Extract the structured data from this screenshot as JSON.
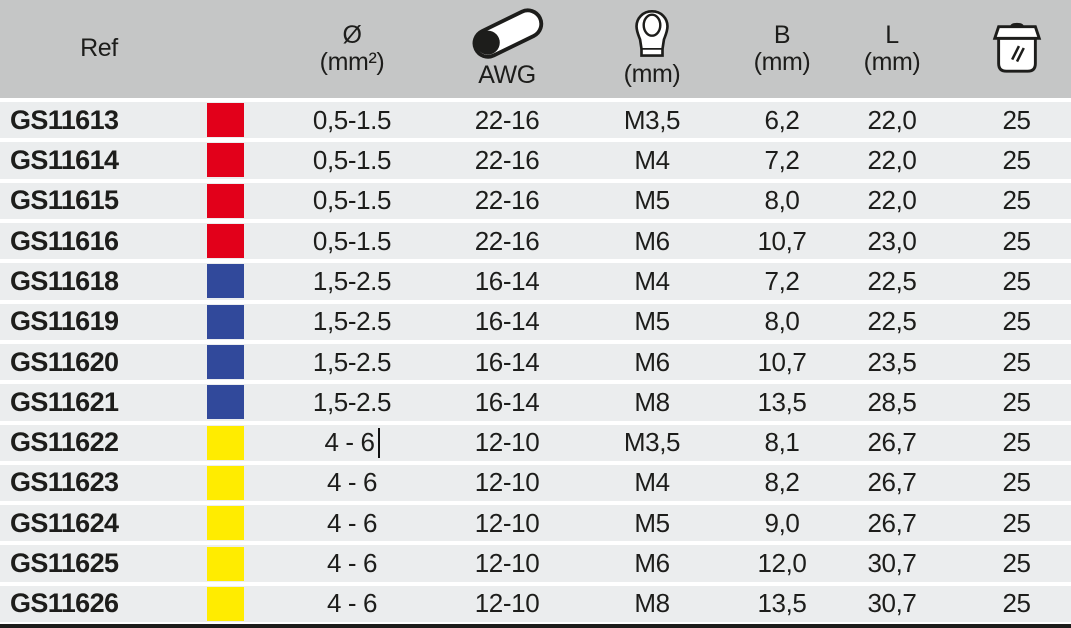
{
  "colors": {
    "header_bg": "#c5c6c6",
    "row_bg": "#ebedee",
    "text": "#1d1d1b",
    "red": "#e2001a",
    "blue": "#31499b",
    "yellow": "#ffec00"
  },
  "header": {
    "ref_label": "Ref",
    "cross_section": {
      "line1": "Ø",
      "line2": "(mm²)"
    },
    "awg": {
      "icon": "cable-icon",
      "label": "AWG"
    },
    "stud": {
      "icon": "ring-terminal-icon",
      "label": "(mm)"
    },
    "b": {
      "line1": "B",
      "line2": "(mm)"
    },
    "l": {
      "line1": "L",
      "line2": "(mm)"
    },
    "qty": {
      "icon": "package-icon"
    }
  },
  "cursor": {
    "visible": true,
    "row": "GS11622",
    "column": "cross_section",
    "after_text": "4 - 6"
  },
  "rows": [
    {
      "ref": "GS11613",
      "color": "red",
      "cross_section": "0,5-1.5",
      "awg": "22-16",
      "stud": "M3,5",
      "b": "6,2",
      "l": "22,0",
      "qty": "25"
    },
    {
      "ref": "GS11614",
      "color": "red",
      "cross_section": "0,5-1.5",
      "awg": "22-16",
      "stud": "M4",
      "b": "7,2",
      "l": "22,0",
      "qty": "25"
    },
    {
      "ref": "GS11615",
      "color": "red",
      "cross_section": "0,5-1.5",
      "awg": "22-16",
      "stud": "M5",
      "b": "8,0",
      "l": "22,0",
      "qty": "25"
    },
    {
      "ref": "GS11616",
      "color": "red",
      "cross_section": "0,5-1.5",
      "awg": "22-16",
      "stud": "M6",
      "b": "10,7",
      "l": "23,0",
      "qty": "25"
    },
    {
      "ref": "GS11618",
      "color": "blue",
      "cross_section": "1,5-2.5",
      "awg": "16-14",
      "stud": "M4",
      "b": "7,2",
      "l": "22,5",
      "qty": "25"
    },
    {
      "ref": "GS11619",
      "color": "blue",
      "cross_section": "1,5-2.5",
      "awg": "16-14",
      "stud": "M5",
      "b": "8,0",
      "l": "22,5",
      "qty": "25"
    },
    {
      "ref": "GS11620",
      "color": "blue",
      "cross_section": "1,5-2.5",
      "awg": "16-14",
      "stud": "M6",
      "b": "10,7",
      "l": "23,5",
      "qty": "25"
    },
    {
      "ref": "GS11621",
      "color": "blue",
      "cross_section": "1,5-2.5",
      "awg": "16-14",
      "stud": "M8",
      "b": "13,5",
      "l": "28,5",
      "qty": "25"
    },
    {
      "ref": "GS11622",
      "color": "yellow",
      "cross_section": "4 - 6",
      "awg": "12-10",
      "stud": "M3,5",
      "b": "8,1",
      "l": "26,7",
      "qty": "25",
      "caret": true
    },
    {
      "ref": "GS11623",
      "color": "yellow",
      "cross_section": "4 - 6",
      "awg": "12-10",
      "stud": "M4",
      "b": "8,2",
      "l": "26,7",
      "qty": "25"
    },
    {
      "ref": "GS11624",
      "color": "yellow",
      "cross_section": "4 - 6",
      "awg": "12-10",
      "stud": "M5",
      "b": "9,0",
      "l": "26,7",
      "qty": "25"
    },
    {
      "ref": "GS11625",
      "color": "yellow",
      "cross_section": "4 - 6",
      "awg": "12-10",
      "stud": "M6",
      "b": "12,0",
      "l": "30,7",
      "qty": "25"
    },
    {
      "ref": "GS11626",
      "color": "yellow",
      "cross_section": "4 - 6",
      "awg": "12-10",
      "stud": "M8",
      "b": "13,5",
      "l": "30,7",
      "qty": "25"
    }
  ]
}
